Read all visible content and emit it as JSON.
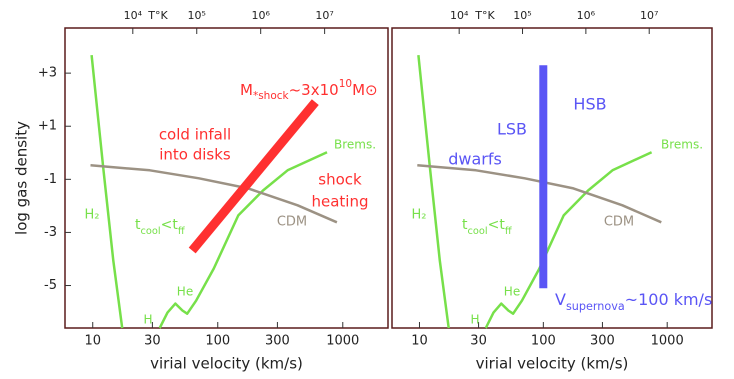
{
  "chart_data": [
    {
      "type": "line",
      "xlabel": "virial velocity (km/s)",
      "ylabel": "log gas density",
      "x2label": "T°K",
      "xscale": "log",
      "x2scale": "log",
      "xlim": [
        6,
        2300
      ],
      "ylim": [
        -6.6,
        4.7
      ],
      "x2lim": [
        870,
        98000000
      ],
      "xticks": [
        10,
        30,
        100,
        300,
        1000
      ],
      "yticks": [
        {
          "value": 3,
          "label": "+3"
        },
        {
          "value": 1,
          "label": "+1"
        },
        -1,
        -3,
        -5
      ],
      "x2ticks": [
        {
          "value": 10000,
          "label": "10⁴"
        },
        {
          "value": 100000,
          "label": "10⁵"
        },
        {
          "value": 1000000,
          "label": "10⁶"
        },
        {
          "value": 10000000,
          "label": "10⁷"
        }
      ],
      "series": [
        {
          "color": "#77e04a",
          "width": 2.5,
          "x": [
            9.8,
            12.2,
            14.6,
            17.2,
            null,
            34.3,
            39.6,
            45.8,
            52.1,
            57,
            67.1,
            93,
            146,
            230,
            362,
            748
          ],
          "values": [
            3.68,
            -0.66,
            -4.06,
            -6.6,
            null,
            -6.6,
            -6.02,
            -5.68,
            -5.94,
            -6.06,
            -5.57,
            -4.36,
            -2.36,
            -1.42,
            -0.66,
            0.02
          ]
        },
        {
          "color": "#9c9284",
          "width": 2.5,
          "x": [
            9.6,
            28.6,
            70.7,
            175,
            435,
            897
          ],
          "values": [
            -0.47,
            -0.66,
            -0.96,
            -1.34,
            -1.98,
            -2.62
          ]
        },
        {
          "color": "#ff3030",
          "width": 9,
          "x": [
            62.4,
            603
          ],
          "values": [
            -3.68,
            1.91
          ]
        }
      ],
      "annotations": {
        "mass_shock": {
          "base": "M",
          "sub": "*shock",
          "rest": "~3x10",
          "sup": "10",
          "unit": "M⊙"
        },
        "infall_1": "cold infall",
        "infall_2": "into disks",
        "shock_1": "shock",
        "shock_2": "heating",
        "brems": "Brems.",
        "cdm": "CDM",
        "h2": "H₂",
        "he": "He",
        "h": "H",
        "tcool": {
          "t1": "t",
          "sub1": "cool",
          "mid": "<t",
          "sub2": "ff"
        }
      }
    },
    {
      "type": "line",
      "xlabel": "virial velocity (km/s)",
      "x2label": "T°K",
      "xscale": "log",
      "x2scale": "log",
      "xlim": [
        6,
        2300
      ],
      "ylim": [
        -6.6,
        4.7
      ],
      "x2lim": [
        870,
        98000000
      ],
      "xticks": [
        10,
        30,
        100,
        300,
        1000
      ],
      "x2ticks": [
        {
          "value": 10000,
          "label": "10⁴"
        },
        {
          "value": 100000,
          "label": "10⁵"
        },
        {
          "value": 1000000,
          "label": "10⁶"
        },
        {
          "value": 10000000,
          "label": "10⁷"
        }
      ],
      "series": [
        {
          "color": "#77e04a",
          "width": 2.5,
          "x": [
            9.8,
            12.2,
            14.6,
            17.2,
            null,
            34.3,
            39.6,
            45.8,
            52.1,
            57,
            67.1,
            93,
            146,
            230,
            362,
            748
          ],
          "values": [
            3.68,
            -0.66,
            -4.06,
            -6.6,
            null,
            -6.6,
            -6.02,
            -5.68,
            -5.94,
            -6.06,
            -5.57,
            -4.36,
            -2.36,
            -1.42,
            -0.66,
            0.02
          ]
        },
        {
          "color": "#9c9284",
          "width": 2.5,
          "x": [
            9.6,
            28.6,
            70.7,
            175,
            435,
            897
          ],
          "values": [
            -0.47,
            -0.66,
            -0.96,
            -1.34,
            -1.98,
            -2.62
          ]
        },
        {
          "color": "#5a55f5",
          "width": 8,
          "x": [
            100,
            100
          ],
          "values": [
            3.3,
            -5.1
          ]
        }
      ],
      "annotations": {
        "hsb": "HSB",
        "lsb": "LSB",
        "dwarfs": "dwarfs",
        "brems": "Brems.",
        "cdm": "CDM",
        "h2": "H₂",
        "he": "He",
        "h": "H",
        "tcool": {
          "t1": "t",
          "sub1": "cool",
          "mid": "<t",
          "sub2": "ff"
        },
        "vsn": {
          "base": "V",
          "sub": "supernova",
          "rest": "~100 km/s"
        }
      }
    }
  ]
}
